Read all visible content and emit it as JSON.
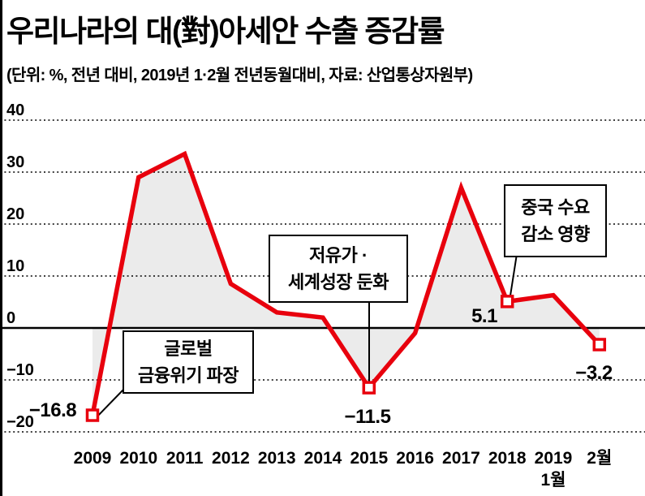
{
  "header": {
    "title": "우리나라의 대(對)아세안 수출 증감률",
    "subtitle": "(단위: %, 전년 대비, 2019년 1·2월 전년동월대비, 자료: 산업통상자원부)"
  },
  "chart_data": {
    "type": "line",
    "title": "우리나라의 대(對)아세안 수출 증감률",
    "unit": "%",
    "source": "산업통상자원부",
    "categories": [
      "2009",
      "2010",
      "2011",
      "2012",
      "2013",
      "2014",
      "2015",
      "2016",
      "2017",
      "2018",
      "2019",
      "2월"
    ],
    "sub_labels": [
      "",
      "",
      "",
      "",
      "",
      "",
      "",
      "",
      "",
      "",
      "1월",
      ""
    ],
    "values": [
      -16.8,
      29,
      33.5,
      8.5,
      3,
      2,
      -11.5,
      -1,
      27,
      5.1,
      6.3,
      -3.2
    ],
    "ylim": [
      -20,
      40
    ],
    "yticks": [
      40,
      30,
      20,
      10,
      0,
      -10,
      -20
    ],
    "grid": "dotted-horizontal",
    "legend": "none",
    "line_color": "#e8000d",
    "area_fill": "#ebebeb",
    "marker_points": [
      {
        "index": 0,
        "category": "2009",
        "value": -16.8,
        "label": "−16.8"
      },
      {
        "index": 6,
        "category": "2015",
        "value": -11.5,
        "label": "−11.5"
      },
      {
        "index": 9,
        "category": "2018",
        "value": 5.1,
        "label": "5.1"
      },
      {
        "index": 11,
        "category": "2019 2월",
        "value": -3.2,
        "label": "−3.2"
      }
    ],
    "annotations": [
      {
        "lines": [
          "글로벌",
          "금융위기 파장"
        ],
        "target": "2009"
      },
      {
        "lines": [
          "저유가 ·",
          "세계성장 둔화"
        ],
        "target": "2015"
      },
      {
        "lines": [
          "중국 수요",
          "감소 영향"
        ],
        "target": "2018"
      }
    ]
  }
}
